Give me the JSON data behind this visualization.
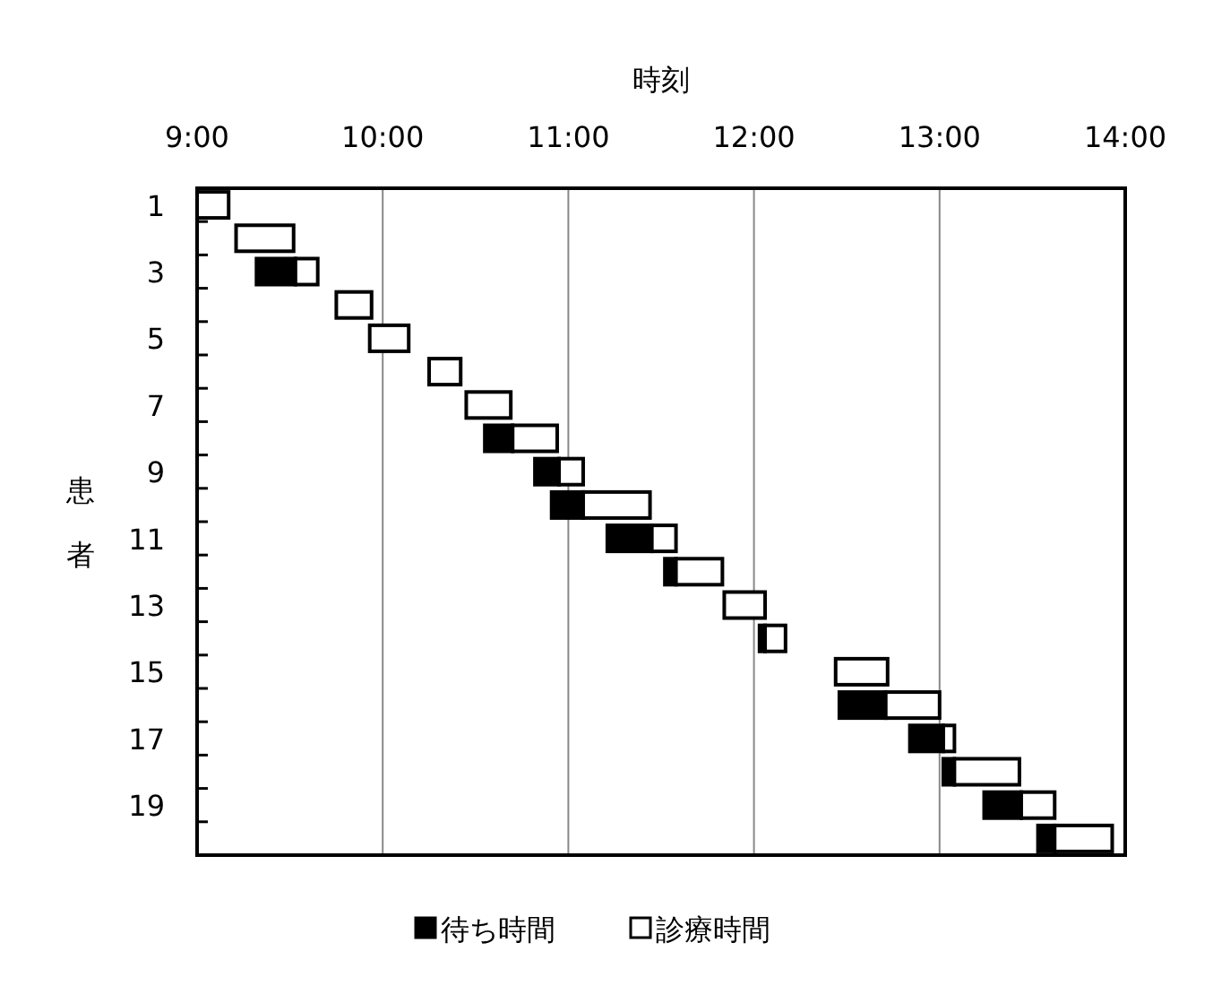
{
  "chart_data": {
    "type": "bar",
    "orientation": "horizontal",
    "xlabel": "時刻",
    "ylabel": "患者",
    "categories": [
      "1",
      null,
      "3",
      null,
      "5",
      null,
      "7",
      null,
      "9",
      null,
      "11",
      null,
      "13",
      null,
      "15",
      null,
      "17",
      null,
      "19",
      null
    ],
    "series": [
      {
        "name": "待ち時間",
        "color": "#000000",
        "base": [
          null,
          null,
          9.32,
          null,
          null,
          null,
          null,
          10.55,
          10.82,
          10.91,
          11.21,
          11.52,
          null,
          12.03,
          null,
          12.46,
          12.84,
          13.02,
          13.24,
          13.53
        ],
        "values": [
          null,
          null,
          0.21,
          null,
          null,
          null,
          null,
          0.15,
          0.13,
          0.17,
          0.24,
          0.06,
          null,
          0.03,
          null,
          0.25,
          0.18,
          0.06,
          0.2,
          0.09
        ]
      },
      {
        "name": "診療時間",
        "color": "#ffffff",
        "base": [
          9.0,
          9.21,
          9.53,
          9.75,
          9.93,
          10.25,
          10.45,
          10.7,
          10.95,
          11.08,
          11.45,
          11.58,
          11.84,
          12.06,
          12.44,
          12.71,
          13.02,
          13.08,
          13.44,
          13.62
        ],
        "values": [
          0.17,
          0.31,
          0.12,
          0.19,
          0.21,
          0.17,
          0.24,
          0.24,
          0.13,
          0.36,
          0.13,
          0.25,
          0.22,
          0.11,
          0.28,
          0.29,
          0.06,
          0.35,
          0.18,
          0.31
        ]
      }
    ],
    "xlim": [
      9,
      14
    ],
    "xticks": [
      {
        "value": 9,
        "label": "9:00"
      },
      {
        "value": 10,
        "label": "10:00"
      },
      {
        "value": 11,
        "label": "11:00"
      },
      {
        "value": 12,
        "label": "12:00"
      },
      {
        "value": 13,
        "label": "13:00"
      },
      {
        "value": 14,
        "label": "14:00"
      }
    ],
    "grid": "x",
    "legend": "bottom"
  }
}
